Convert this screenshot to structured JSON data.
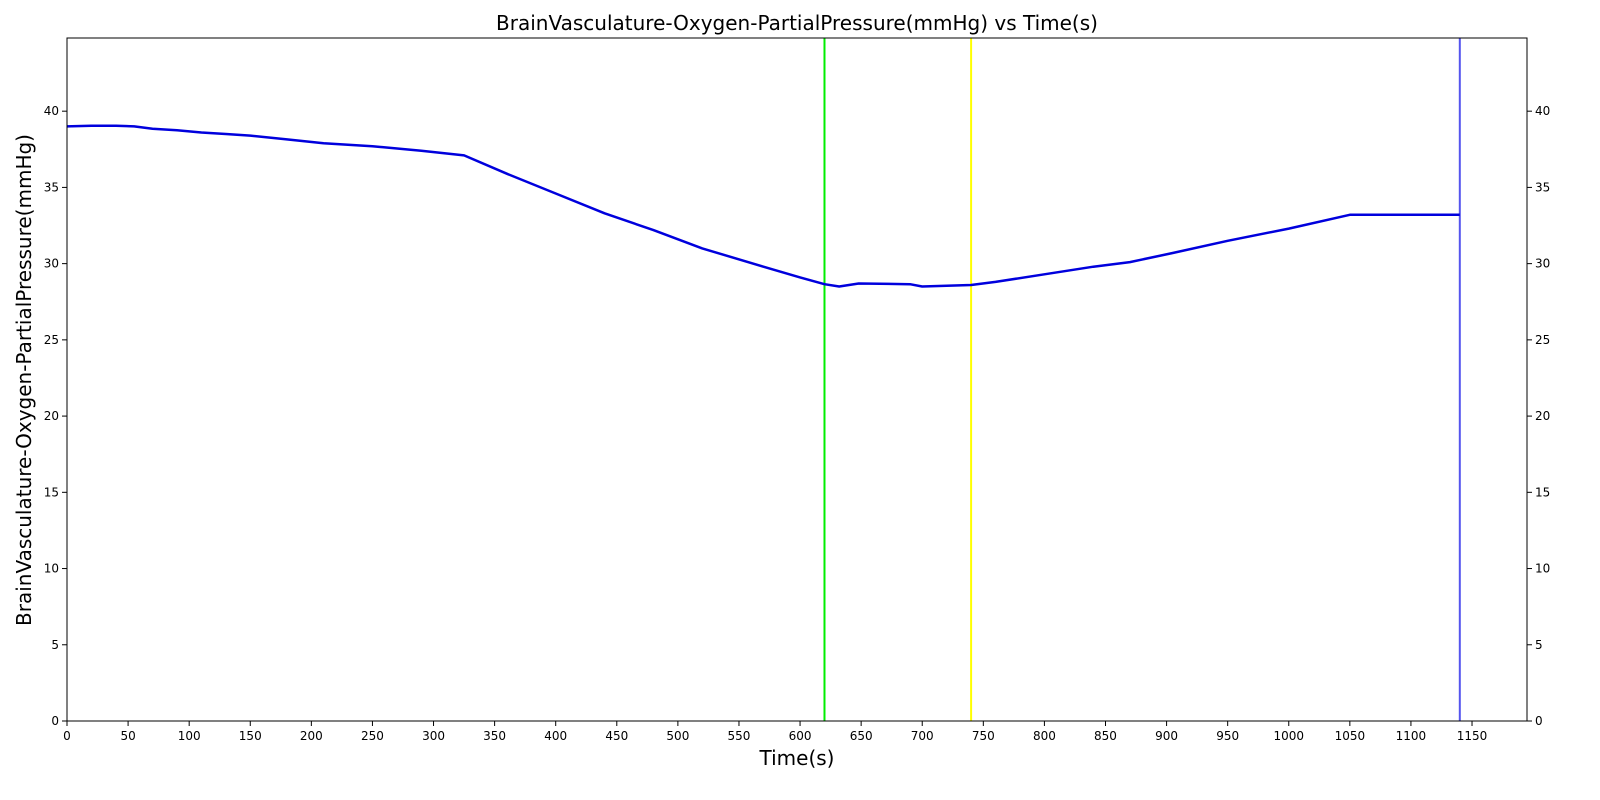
{
  "chart_data": {
    "type": "line",
    "title": "BrainVasculature-Oxygen-PartialPressure(mmHg) vs Time(s)",
    "xlabel": "Time(s)",
    "ylabel": "BrainVasculature-Oxygen-PartialPressure(mmHg)",
    "xlim": [
      0,
      1195
    ],
    "ylim": [
      0,
      44.8
    ],
    "xticks": [
      0,
      50,
      100,
      150,
      200,
      250,
      300,
      350,
      400,
      450,
      500,
      550,
      600,
      650,
      700,
      750,
      800,
      850,
      900,
      950,
      1000,
      1050,
      1100,
      1150
    ],
    "yticks": [
      0,
      5,
      10,
      15,
      20,
      25,
      30,
      35,
      40
    ],
    "right_axis_ticks": true,
    "grid": false,
    "legend": "none",
    "colors": {
      "series": "#0000dd",
      "marker_green": "#00ee00",
      "marker_yellow": "#ffff00",
      "marker_end": "#5555ee"
    },
    "vlines": [
      {
        "x": 620,
        "color": "#00ee00"
      },
      {
        "x": 740,
        "color": "#ffff00"
      },
      {
        "x": 1140,
        "color": "#5555ee"
      }
    ],
    "series": [
      {
        "x": [
          0,
          20,
          40,
          55,
          70,
          90,
          110,
          130,
          150,
          180,
          210,
          250,
          290,
          325,
          360,
          400,
          440,
          480,
          520,
          570,
          600,
          620,
          632,
          648,
          690,
          700,
          740,
          760,
          800,
          840,
          870,
          905,
          950,
          1000,
          1050,
          1100,
          1140
        ],
        "y": [
          39.0,
          39.05,
          39.05,
          39.0,
          38.85,
          38.75,
          38.6,
          38.5,
          38.4,
          38.15,
          37.9,
          37.7,
          37.4,
          37.1,
          35.9,
          34.6,
          33.3,
          32.2,
          31.0,
          29.8,
          29.1,
          28.65,
          28.5,
          28.7,
          28.65,
          28.5,
          28.6,
          28.8,
          29.3,
          29.8,
          30.1,
          30.7,
          31.5,
          32.3,
          33.2,
          33.2,
          33.2
        ]
      }
    ]
  }
}
